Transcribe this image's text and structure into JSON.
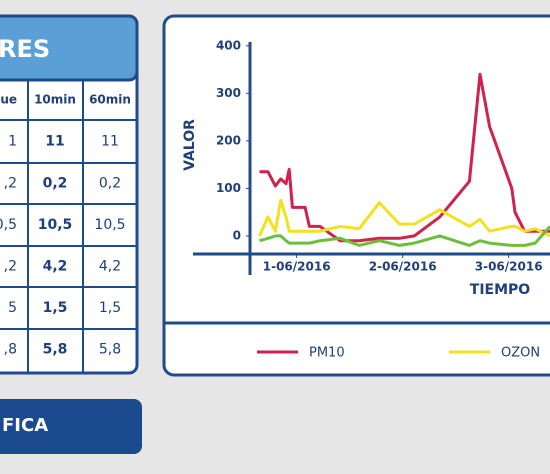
{
  "panel": {
    "title": "RES",
    "table": {
      "header": [
        "lue",
        "10min",
        "60min"
      ],
      "rows": [
        [
          "1",
          "11",
          "11"
        ],
        [
          ",2",
          "0,2",
          "0,2"
        ],
        [
          "0,5",
          "10,5",
          "10,5"
        ],
        [
          ",2",
          "4,2",
          "4,2"
        ],
        [
          "5",
          "1,5",
          "1,5"
        ],
        [
          ",8",
          "5,8",
          "5,8"
        ]
      ]
    }
  },
  "button": {
    "label": "FICA"
  },
  "chart_data": {
    "type": "line",
    "ylabel": "VALOR",
    "xlabel": "TIEMPO",
    "x": [
      0.65,
      0.73,
      0.8,
      0.85,
      0.9,
      0.93,
      0.96,
      1.08,
      1.12,
      1.22,
      1.41,
      1.59,
      1.78,
      1.97,
      2.11,
      2.35,
      2.63,
      2.73,
      2.82,
      3.03,
      3.06,
      3.15,
      3.25,
      3.39
    ],
    "series": [
      {
        "name": "PM10",
        "color": "#d0224a",
        "values": [
          135,
          135,
          105,
          120,
          110,
          140,
          60,
          60,
          20,
          20,
          -10,
          -10,
          -5,
          -5,
          0,
          40,
          115,
          340,
          230,
          100,
          50,
          10,
          10,
          10
        ]
      },
      {
        "name": "OZON",
        "color": "#f2e21c",
        "values": [
          0,
          40,
          10,
          75,
          40,
          10,
          10,
          10,
          10,
          10,
          20,
          15,
          70,
          25,
          25,
          55,
          20,
          35,
          10,
          20,
          20,
          10,
          15,
          0
        ]
      },
      {
        "color": "#6cbf3a",
        "values": [
          -10,
          -5,
          0,
          0,
          -10,
          -15,
          -15,
          -15,
          -15,
          -10,
          -5,
          -20,
          -10,
          -20,
          -15,
          0,
          -20,
          -10,
          -15,
          -20,
          -20,
          -20,
          -15,
          20
        ]
      }
    ],
    "xlim": [
      0.56,
      3.39
    ],
    "xticks": [
      {
        "value": 1,
        "label": "1-06/2016"
      },
      {
        "value": 2,
        "label": "2-06/2016"
      },
      {
        "value": 3,
        "label": "3-06/2016"
      }
    ],
    "ylim": [
      -38,
      408
    ],
    "yticks": [
      0,
      100,
      200,
      300,
      400
    ]
  }
}
